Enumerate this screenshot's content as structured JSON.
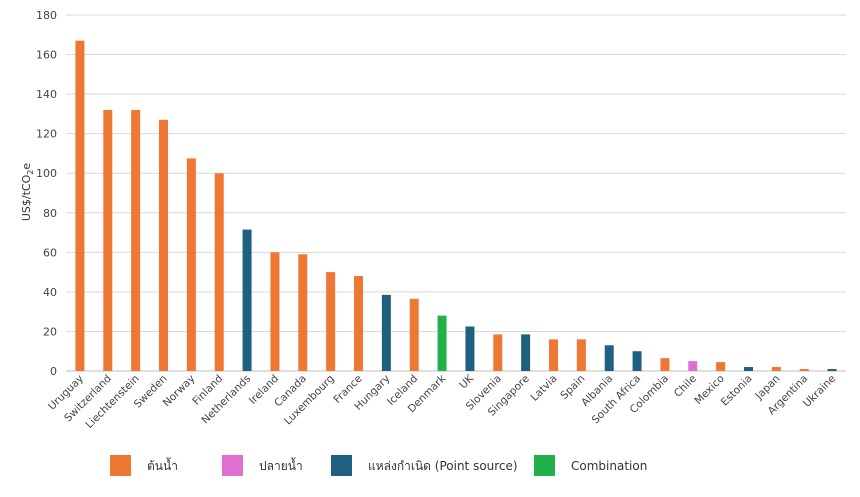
{
  "chart_data": {
    "type": "bar",
    "ylabel": "US$/tCO",
    "ylabel_sub": "2",
    "ylabel_suffix": "e",
    "ylim": [
      0,
      180
    ],
    "yticks": [
      0,
      20,
      40,
      60,
      80,
      100,
      120,
      140,
      160,
      180
    ],
    "grid": true,
    "legend_position": "bottom",
    "categories": [
      "Uruguay",
      "Switzerland",
      "Liechtenstein",
      "Sweden",
      "Norway",
      "Finland",
      "Netherlands",
      "Ireland",
      "Canada",
      "Luxembourg",
      "France",
      "Hungary",
      "Iceland",
      "Denmark",
      "UK",
      "Slovenia",
      "Singapore",
      "Latvia",
      "Spain",
      "Albania",
      "South Africa",
      "Colombia",
      "Chile",
      "Mexico",
      "Estonia",
      "Japan",
      "Argentina",
      "Ukraine"
    ],
    "values": [
      167,
      132,
      132,
      127,
      107.5,
      100,
      71.5,
      60,
      59,
      50,
      48,
      38.5,
      36.5,
      28,
      22.5,
      18.5,
      18.5,
      16,
      16,
      13,
      10,
      6.5,
      5,
      4.5,
      2,
      2,
      1,
      1
    ],
    "groups": [
      "upstream",
      "upstream",
      "upstream",
      "upstream",
      "upstream",
      "upstream",
      "point",
      "upstream",
      "upstream",
      "upstream",
      "upstream",
      "point",
      "upstream",
      "combination",
      "point",
      "upstream",
      "point",
      "upstream",
      "upstream",
      "point",
      "point",
      "upstream",
      "downstream",
      "upstream",
      "point",
      "upstream",
      "upstream",
      "point"
    ],
    "legend": [
      {
        "key": "upstream",
        "label": "ต้นน้ำ",
        "color": "#ee7733"
      },
      {
        "key": "downstream",
        "label": "ปลายน้ำ",
        "color": "#e070d0"
      },
      {
        "key": "point",
        "label": "แหล่งกำเนิด (Point source)",
        "color": "#1f5f80"
      },
      {
        "key": "combination",
        "label": "Combination",
        "color": "#22b04b"
      }
    ]
  }
}
